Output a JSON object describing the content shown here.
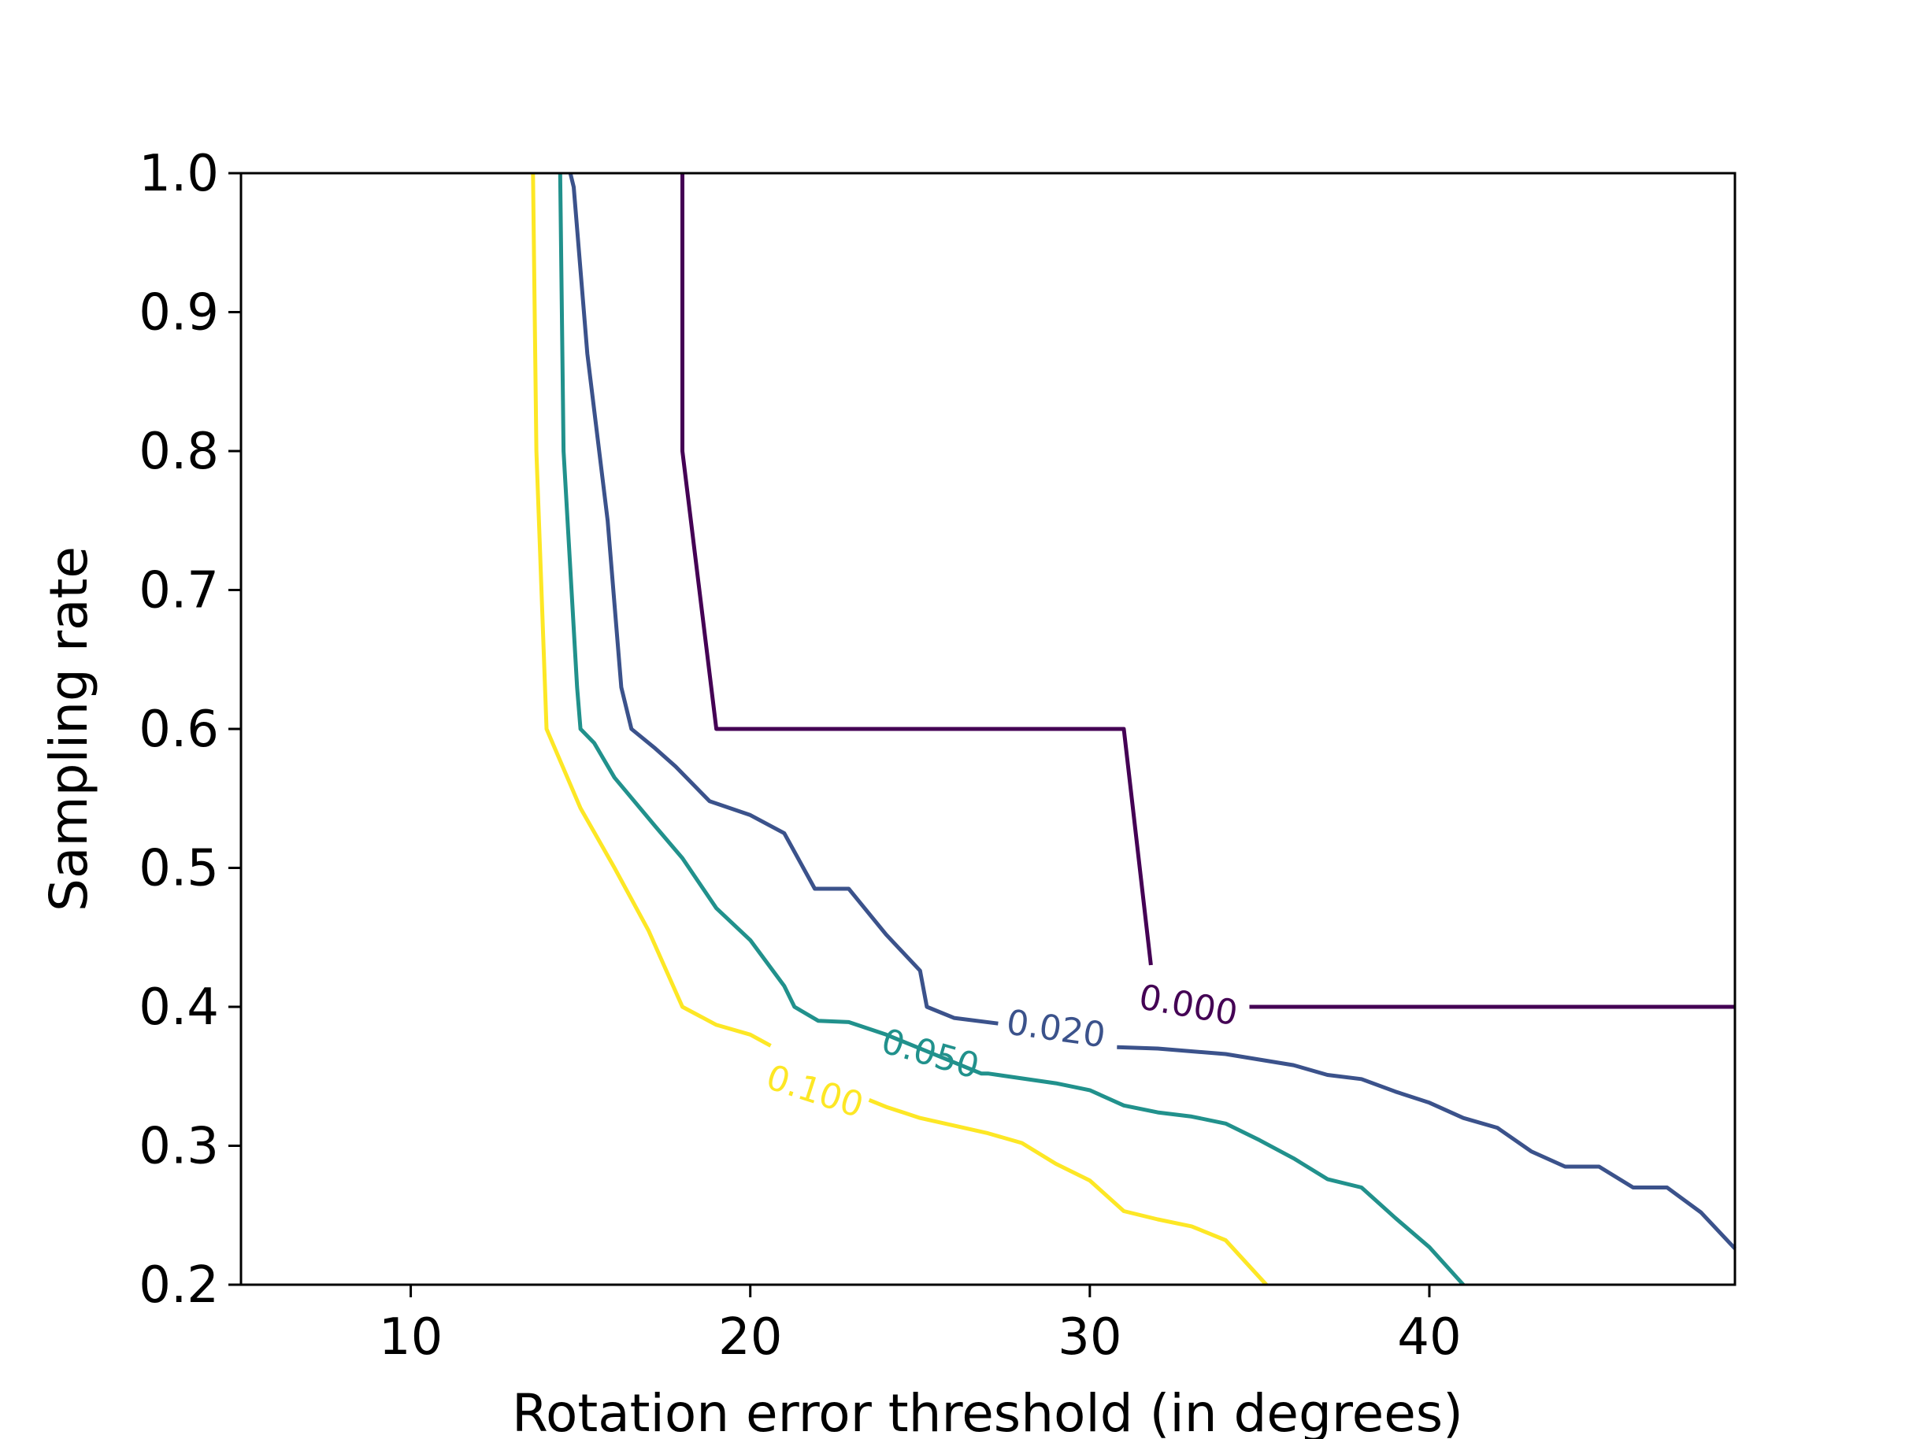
{
  "chart_data": {
    "type": "contour",
    "title": "",
    "xlabel": "Rotation error threshold (in degrees)",
    "ylabel": "Sampling rate",
    "xlim": [
      5,
      49
    ],
    "ylim": [
      0.2,
      1.0
    ],
    "xticks": [
      10,
      20,
      30,
      40
    ],
    "xtick_labels": [
      "10",
      "20",
      "30",
      "40"
    ],
    "yticks": [
      0.2,
      0.3,
      0.4,
      0.5,
      0.6,
      0.7,
      0.8,
      0.9,
      1.0
    ],
    "ytick_labels": [
      "0.2",
      "0.3",
      "0.4",
      "0.5",
      "0.6",
      "0.7",
      "0.8",
      "0.9",
      "1.0"
    ],
    "grid": false,
    "legend": "none",
    "series": [
      {
        "level": "0.000",
        "color": "#440154",
        "label_at": [
          32.9,
          0.401
        ],
        "label_angle": 10,
        "gap": [
          [
            31.8,
            0.43
          ],
          [
            34.7,
            0.4
          ]
        ],
        "x": [
          18.0,
          18.0,
          19.0,
          31.0,
          31.8,
          34.7,
          49.0
        ],
        "y": [
          1.0,
          0.8,
          0.6,
          0.6,
          0.43,
          0.4,
          0.4
        ]
      },
      {
        "level": "0.020",
        "color": "#3b528b",
        "label_at": [
          29.0,
          0.384
        ],
        "label_angle": 8,
        "gap": [
          [
            27.3,
            0.388
          ],
          [
            30.8,
            0.371
          ]
        ],
        "x": [
          14.7,
          14.8,
          15.2,
          15.8,
          16.2,
          16.5,
          17.2,
          17.8,
          18.8,
          20.0,
          21.0,
          21.9,
          22.9,
          24.0,
          25.0,
          25.2,
          26.0,
          27.3,
          30.8,
          32.0,
          34.0,
          36.0,
          37.0,
          38.0,
          39.0,
          40.0,
          41.0,
          42.0,
          43.0,
          44.0,
          45.0,
          46.0,
          47.0,
          48.0,
          49.0
        ],
        "y": [
          1.0,
          0.99,
          0.87,
          0.75,
          0.63,
          0.6,
          0.586,
          0.573,
          0.548,
          0.538,
          0.525,
          0.485,
          0.485,
          0.452,
          0.426,
          0.4,
          0.392,
          0.388,
          0.371,
          0.37,
          0.366,
          0.358,
          0.351,
          0.348,
          0.339,
          0.331,
          0.32,
          0.313,
          0.296,
          0.285,
          0.285,
          0.27,
          0.27,
          0.252,
          0.226
        ]
      },
      {
        "level": "0.050",
        "color": "#21918c",
        "label_at": [
          25.3,
          0.366
        ],
        "label_angle": 16,
        "gap": [
          [
            24.0,
            0.379
          ],
          [
            26.8,
            0.352
          ]
        ],
        "x": [
          14.4,
          14.5,
          14.9,
          15.0,
          15.4,
          16.0,
          17.2,
          18.0,
          19.0,
          20.0,
          21.0,
          21.3,
          22.0,
          22.9,
          24.0,
          26.8,
          27.0,
          29.0,
          30.0,
          31.0,
          32.0,
          33.0,
          34.0,
          35.0,
          36.0,
          37.0,
          38.0,
          39.0,
          40.0,
          41.0
        ],
        "y": [
          1.0,
          0.8,
          0.63,
          0.6,
          0.59,
          0.565,
          0.53,
          0.507,
          0.471,
          0.448,
          0.415,
          0.4,
          0.39,
          0.389,
          0.38,
          0.352,
          0.352,
          0.345,
          0.34,
          0.329,
          0.324,
          0.321,
          0.316,
          0.304,
          0.291,
          0.276,
          0.27,
          0.248,
          0.227,
          0.2
        ]
      },
      {
        "level": "0.100",
        "color": "#fde725",
        "label_at": [
          21.9,
          0.339
        ],
        "label_angle": 18,
        "gap": [
          [
            20.6,
            0.372
          ],
          [
            23.5,
            0.333
          ]
        ],
        "x": [
          13.6,
          13.7,
          14.0,
          15.0,
          16.0,
          17.0,
          18.0,
          19.0,
          20.0,
          20.6,
          23.5,
          24.0,
          25.0,
          27.0,
          28.0,
          29.0,
          30.0,
          31.0,
          32.0,
          33.0,
          34.0,
          35.2
        ],
        "y": [
          1.0,
          0.8,
          0.6,
          0.543,
          0.5,
          0.455,
          0.4,
          0.387,
          0.38,
          0.372,
          0.333,
          0.328,
          0.32,
          0.309,
          0.302,
          0.287,
          0.275,
          0.253,
          0.247,
          0.242,
          0.232,
          0.2
        ]
      }
    ]
  }
}
